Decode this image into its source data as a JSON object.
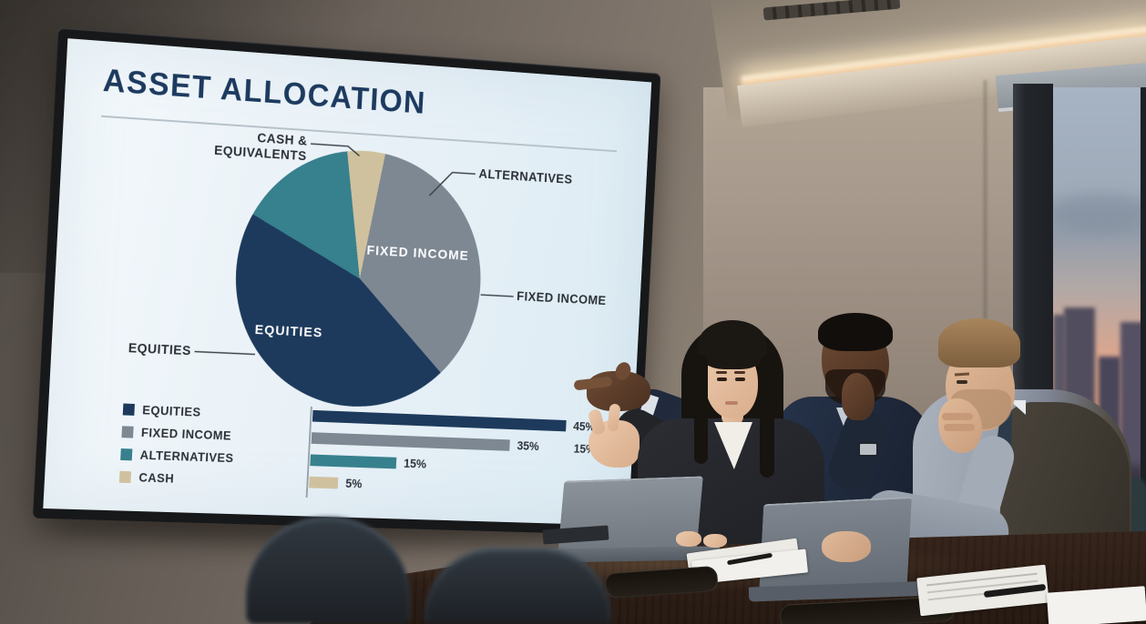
{
  "slide": {
    "title": "ASSET ALLOCATION",
    "callouts": {
      "cash_line1": "CASH &",
      "cash_line2": "EQUIVALENTS",
      "alternatives": "ALTERNATIVES",
      "fixed_income": "FIXED INCOME",
      "equities": "EQUITIES"
    },
    "pie_inner_labels": {
      "fixed_income": "FIXED INCOME",
      "equities": "EQUITIES"
    },
    "legend": [
      {
        "label": "EQUITIES",
        "color": "#1d3a5c"
      },
      {
        "label": "FIXED INCOME",
        "color": "#7e8893"
      },
      {
        "label": "ALTERNATIVES",
        "color": "#37808d"
      },
      {
        "label": "CASH",
        "color": "#d0c19e"
      }
    ],
    "bars": [
      {
        "label": "EQUITIES",
        "value": 45,
        "value_label": "45%",
        "color": "#1d3a5c"
      },
      {
        "label": "FIXED INCOME",
        "value": 35,
        "value_label": "35%",
        "color": "#7e8893"
      },
      {
        "label": "ALTERNATIVES",
        "value": 15,
        "value_label": "15%",
        "color": "#37808d"
      },
      {
        "label": "CASH",
        "value": 5,
        "value_label": "5%",
        "color": "#d0c19e"
      }
    ],
    "stray_value_label": "15%",
    "chart_data": [
      {
        "type": "pie",
        "title": "ASSET ALLOCATION",
        "segments": [
          {
            "label": "CASH & EQUIVALENTS",
            "value": 5,
            "color": "#d0c19e"
          },
          {
            "label": "FIXED INCOME",
            "value": 35,
            "color": "#7e8893"
          },
          {
            "label": "EQUITIES",
            "value": 45,
            "color": "#1d3a5c"
          },
          {
            "label": "ALTERNATIVES",
            "value": 15,
            "color": "#37808d"
          }
        ],
        "start_angle_deg": -9,
        "direction": "clockwise",
        "labels_inside": [
          "FIXED INCOME",
          "EQUITIES"
        ]
      },
      {
        "type": "bar",
        "orientation": "horizontal",
        "categories": [
          "EQUITIES",
          "FIXED INCOME",
          "ALTERNATIVES",
          "CASH"
        ],
        "values": [
          45,
          35,
          15,
          5
        ],
        "value_labels": [
          "45%",
          "35%",
          "15%",
          "5%"
        ],
        "xlim": [
          0,
          50
        ],
        "legend_position": "left"
      }
    ]
  },
  "scene_palette": {
    "slide_background": "#e9f1f7",
    "title_text": "#1d3a5f",
    "wall": "#7d736a",
    "table_wood": "#573b2a",
    "sky_top": "#a7b4c4",
    "sky_horizon": "#e9a47f",
    "cove_light": "#fff3d6"
  }
}
